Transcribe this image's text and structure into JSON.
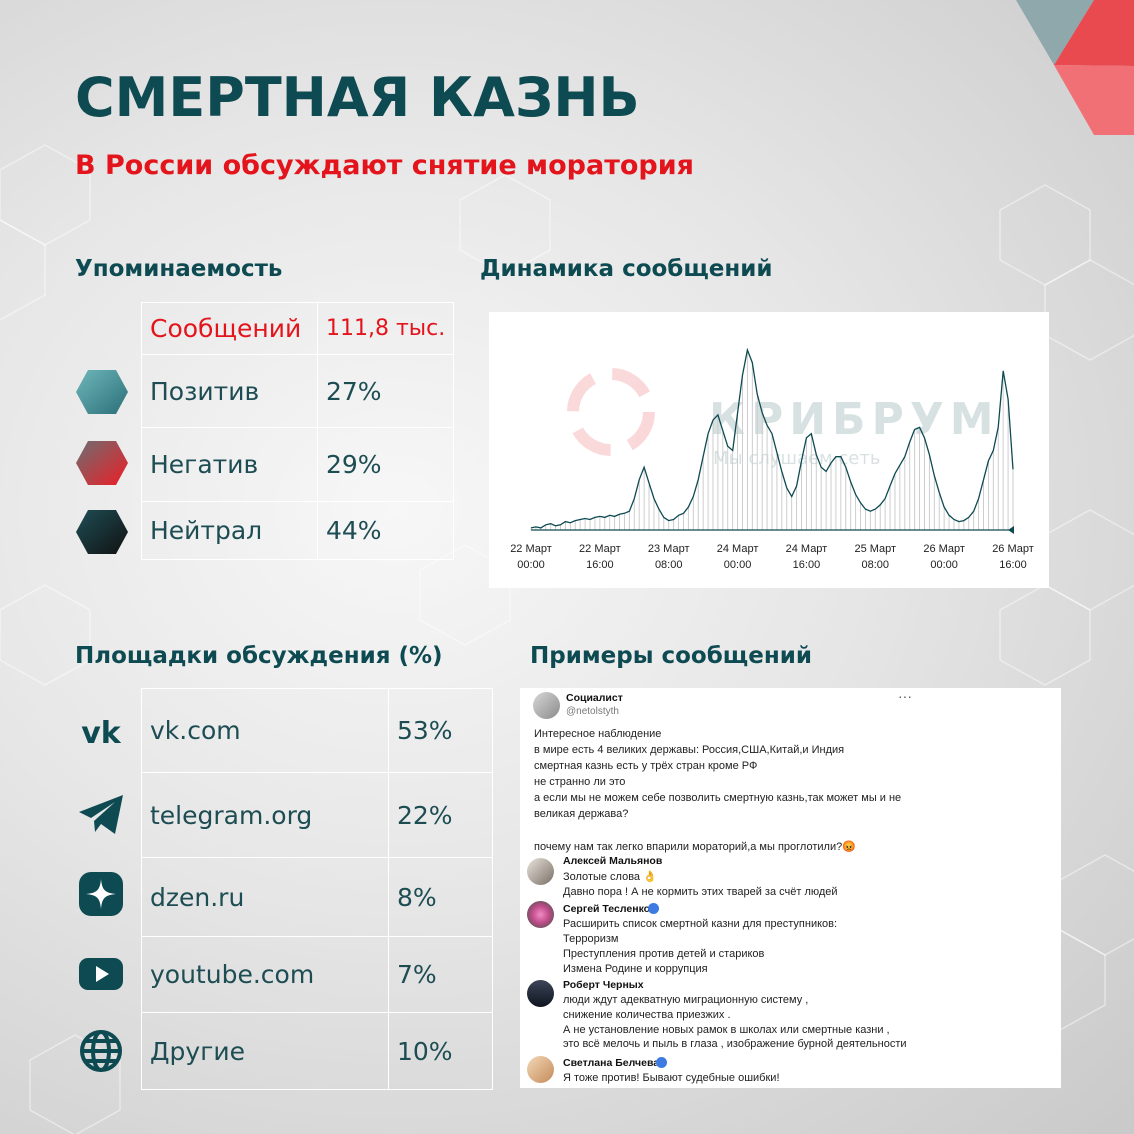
{
  "title": "СМЕРТНАЯ КАЗНЬ",
  "subtitle": "В России обсуждают снятие моратория",
  "mentions": {
    "heading": "Упоминаемость",
    "messages_label": "Сообщений",
    "messages_value": "111,8 тыс.",
    "rows": [
      {
        "label": "Позитив",
        "value": "27%",
        "icon": "teal-hexagon-icon"
      },
      {
        "label": "Негатив",
        "value": "29%",
        "icon": "red-hexagon-icon"
      },
      {
        "label": "Нейтрал",
        "value": "44%",
        "icon": "dark-hexagon-icon"
      }
    ]
  },
  "platforms": {
    "heading": "Площадки обсуждения (%)",
    "rows": [
      {
        "label": "vk.com",
        "value": "53%",
        "icon": "vk-icon"
      },
      {
        "label": "telegram.org",
        "value": "22%",
        "icon": "telegram-icon"
      },
      {
        "label": "dzen.ru",
        "value": "8%",
        "icon": "dzen-icon"
      },
      {
        "label": "youtube.com",
        "value": "7%",
        "icon": "youtube-icon"
      },
      {
        "label": "Другие",
        "value": "10%",
        "icon": "globe-icon"
      }
    ]
  },
  "chart_heading": "Динамика сообщений",
  "chart_data": {
    "type": "area",
    "title": "",
    "xlabel": "",
    "ylabel": "",
    "grid": false,
    "x_ticks": [
      {
        "day": "22 Март",
        "time": "00:00"
      },
      {
        "day": "22 Март",
        "time": "16:00"
      },
      {
        "day": "23 Март",
        "time": "08:00"
      },
      {
        "day": "24 Март",
        "time": "00:00"
      },
      {
        "day": "24 Март",
        "time": "16:00"
      },
      {
        "day": "25 Март",
        "time": "08:00"
      },
      {
        "day": "26 Март",
        "time": "00:00"
      },
      {
        "day": "26 Март",
        "time": "16:00"
      }
    ],
    "x_hours_start": "22 Март 00:00",
    "values": [
      2,
      3,
      2,
      5,
      6,
      4,
      5,
      8,
      7,
      9,
      10,
      11,
      10,
      12,
      13,
      12,
      14,
      13,
      15,
      16,
      18,
      30,
      48,
      60,
      45,
      30,
      20,
      12,
      9,
      10,
      14,
      16,
      22,
      32,
      48,
      70,
      92,
      105,
      110,
      95,
      80,
      76,
      112,
      148,
      172,
      160,
      130,
      112,
      100,
      92,
      74,
      56,
      40,
      32,
      42,
      66,
      88,
      92,
      72,
      60,
      56,
      64,
      70,
      70,
      60,
      46,
      34,
      26,
      20,
      18,
      20,
      24,
      30,
      42,
      54,
      62,
      70,
      84,
      96,
      98,
      88,
      72,
      52,
      36,
      22,
      14,
      10,
      8,
      9,
      12,
      18,
      30,
      48,
      66,
      76,
      98,
      152,
      125,
      58
    ],
    "watermark": {
      "brand": "КРИБРУМ",
      "tagline": "Мы слушаем сеть"
    },
    "colors": {
      "line": "#0e4a52",
      "fill": "#c8c8c8"
    }
  },
  "examples": {
    "heading": "Примеры сообщений",
    "post": {
      "author": "Социалист",
      "handle": "@netolstyth",
      "more_icon": "more-dots-icon",
      "lines": [
        "Интересное наблюдение",
        "в мире есть 4 великих державы: Россия,США,Китай,и Индия",
        "смертная казнь есть у трёх стран кроме РФ",
        "не странно ли это",
        "а если мы не можем себе позволить смертную казнь,так может мы и не",
        "великая держава?",
        "",
        "почему нам так легко впарили мораторий,а мы проглотили?😡"
      ]
    },
    "comments": [
      {
        "author": "Алексей Мальянов",
        "badge": false,
        "lines": [
          "Золотые слова 👌",
          "Давно пора ! А не кормить этих тварей за счёт людей"
        ]
      },
      {
        "author": "Сергей Тесленко",
        "badge": true,
        "lines": [
          "Расширить список смертной казни для преступников:",
          "Терроризм",
          "Преступления против детей и стариков",
          "Измена Родине и коррупция"
        ]
      },
      {
        "author": "Роберт Черных",
        "badge": false,
        "lines": [
          "люди ждут адекватную миграционную систему ,",
          "снижение количества приезжих .",
          "А не установление новых рамок в школах или смертные казни ,",
          "это всё мелочь и пыль в глаза , изображение бурной деятельности"
        ]
      },
      {
        "author": "Светлана Белчева",
        "badge": true,
        "lines": [
          "Я тоже против! Бывают судебные ошибки!"
        ]
      }
    ]
  }
}
